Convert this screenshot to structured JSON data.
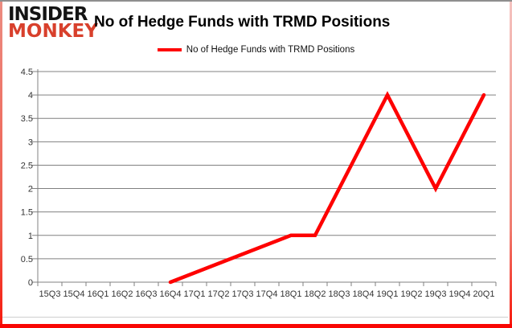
{
  "logo": {
    "line1": "INSIDER",
    "line2": "MONKEY"
  },
  "header": {
    "title": "No of Hedge Funds with TRMD Positions"
  },
  "legend": {
    "label": "No of Hedge Funds with TRMD Positions"
  },
  "chart_data": {
    "type": "line",
    "title": "No of Hedge Funds with TRMD Positions",
    "categories": [
      "15Q3",
      "15Q4",
      "16Q1",
      "16Q2",
      "16Q3",
      "16Q4",
      "17Q1",
      "17Q2",
      "17Q3",
      "17Q4",
      "18Q1",
      "18Q2",
      "18Q3",
      "18Q4",
      "19Q1",
      "19Q2",
      "19Q3",
      "19Q4",
      "20Q1"
    ],
    "series": [
      {
        "name": "No of Hedge Funds with TRMD Positions",
        "color": "#fe0000",
        "values": [
          null,
          null,
          null,
          null,
          null,
          0,
          null,
          null,
          null,
          null,
          1,
          1,
          null,
          null,
          4,
          null,
          2,
          null,
          4
        ]
      }
    ],
    "line_vertices": [
      [
        "16Q4",
        0
      ],
      [
        "18Q1",
        1
      ],
      [
        "18Q2",
        1
      ],
      [
        "19Q1",
        4
      ],
      [
        "19Q3",
        2
      ],
      [
        "20Q1",
        4
      ]
    ],
    "ylim": [
      0,
      4.5
    ],
    "yticks": [
      "0",
      "0.5",
      "1",
      "1.5",
      "2",
      "2.5",
      "3",
      "3.5",
      "4",
      "4.5"
    ],
    "grid": "horizontal-only",
    "legend_position": "top-center",
    "colors": {
      "line": "#fe0000",
      "grid": "#808080",
      "axis": "#808080",
      "tick_text": "#333333"
    }
  }
}
